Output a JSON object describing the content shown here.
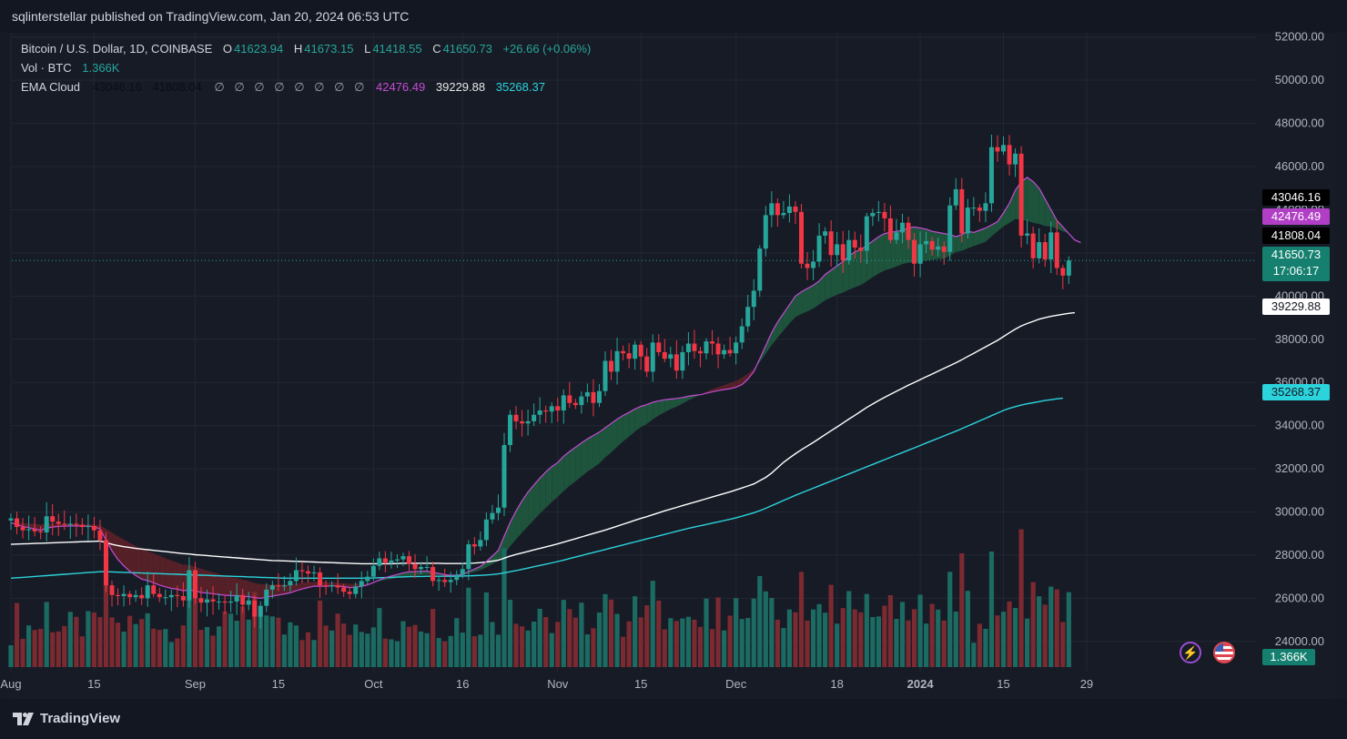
{
  "header": {
    "published": "sqlinterstellar published on TradingView.com, Jan 20, 2024 06:53 UTC"
  },
  "legend": {
    "symbol": "Bitcoin / U.S. Dollar, 1D, COINBASE",
    "o_label": "O",
    "o": "41623.94",
    "h_label": "H",
    "h": "41673.15",
    "l_label": "L",
    "l": "41418.55",
    "c_label": "C",
    "c": "41650.73",
    "change": "+26.66 (+0.06%)",
    "vol_label": "Vol · BTC",
    "vol": "1.366K",
    "ema_label": "EMA Cloud",
    "ema_v1": "43046.16",
    "ema_v2": "41808.04",
    "null_symbol": "∅",
    "ema_v3": "42476.49",
    "ema_v4": "39229.88",
    "ema_v5": "35268.37"
  },
  "price_badges": {
    "b1": "43046.16",
    "b2": "42476.49",
    "b3": "41808.04",
    "last": "41650.73",
    "countdown": "17:06:17",
    "b4": "39229.88",
    "b5": "35268.37",
    "vol": "1.366K"
  },
  "footer": {
    "brand": "TradingView"
  },
  "colors": {
    "up": "#26a69a",
    "down": "#f23645",
    "ema_fast": "#c64cd5",
    "ema_200": "#ffffff",
    "ema_300": "#2bd4dc",
    "cloud_bull": "#1f5a3f",
    "cloud_bear": "#5c2128",
    "background": "#171b26"
  },
  "icons": {
    "flash": "flash-icon",
    "flag": "us-flag-icon"
  },
  "chart_data": {
    "type": "candlestick",
    "title": "Bitcoin / U.S. Dollar, 1D, COINBASE",
    "y_ticks": [
      24000,
      26000,
      28000,
      30000,
      32000,
      34000,
      36000,
      38000,
      40000,
      42000,
      44000,
      46000,
      48000,
      50000,
      52000
    ],
    "y_tick_labels": [
      "24000.00",
      "26000.00",
      "28000.00",
      "30000.00",
      "32000.00",
      "34000.00",
      "36000.00",
      "38000.00",
      "40000.00",
      "42000.00",
      "44000.00",
      "46000.00",
      "48000.00",
      "50000.00",
      "52000.00"
    ],
    "ylim": [
      22600,
      52200
    ],
    "x_tick_labels": [
      {
        "label": "Aug",
        "date": "2023-08-01"
      },
      {
        "label": "15",
        "date": "2023-08-15"
      },
      {
        "label": "Sep",
        "date": "2023-09-01"
      },
      {
        "label": "15",
        "date": "2023-09-15"
      },
      {
        "label": "Oct",
        "date": "2023-10-01"
      },
      {
        "label": "16",
        "date": "2023-10-16"
      },
      {
        "label": "Nov",
        "date": "2023-11-01"
      },
      {
        "label": "15",
        "date": "2023-11-15"
      },
      {
        "label": "Dec",
        "date": "2023-12-01"
      },
      {
        "label": "18",
        "date": "2023-12-18"
      },
      {
        "label": "2024",
        "date": "2024-01-01"
      },
      {
        "label": "15",
        "date": "2024-01-15"
      },
      {
        "label": "29",
        "date": "2024-01-29"
      }
    ],
    "x_start": "2023-08-01",
    "closes": [
      29700,
      29300,
      29150,
      29200,
      29100,
      29050,
      29800,
      29550,
      29450,
      29400,
      29450,
      29400,
      29300,
      29350,
      29150,
      28700,
      26600,
      26150,
      26100,
      26200,
      26050,
      26150,
      26000,
      26600,
      26200,
      26050,
      26050,
      26150,
      26100,
      25900,
      27300,
      26000,
      25800,
      25950,
      25850,
      25850,
      25800,
      25850,
      26150,
      25700,
      25900,
      25150,
      25650,
      26400,
      26600,
      26550,
      26600,
      26800,
      27300,
      27250,
      27150,
      27200,
      26600,
      26550,
      26600,
      26500,
      26300,
      26200,
      26550,
      26800,
      27000,
      27500,
      27850,
      27650,
      27750,
      27800,
      27950,
      27600,
      27350,
      27450,
      27450,
      26800,
      26850,
      26750,
      26850,
      27100,
      27350,
      28500,
      28400,
      28700,
      29650,
      29950,
      30200,
      33100,
      34500,
      34200,
      34100,
      34200,
      34500,
      34700,
      34650,
      34900,
      34700,
      35400,
      35050,
      34950,
      35350,
      35550,
      35050,
      35600,
      37000,
      36500,
      37450,
      37350,
      37100,
      37750,
      37200,
      36500,
      37850,
      37400,
      37100,
      37300,
      36550,
      37400,
      37800,
      37450,
      37350,
      37900,
      37800,
      37300,
      37500,
      37350,
      37850,
      38600,
      39500,
      40250,
      42200,
      43750,
      44300,
      43750,
      43850,
      44150,
      43900,
      41500,
      41300,
      41600,
      42800,
      43000,
      41900,
      42400,
      41650,
      42600,
      42250,
      42100,
      43700,
      43850,
      43900,
      43600,
      42600,
      42950,
      43400,
      42600,
      41500,
      42400,
      42550,
      42150,
      42300,
      42050,
      44200,
      44950,
      42900,
      44100,
      44100,
      43950,
      44300,
      46900,
      46700,
      47000,
      46100,
      46600,
      42800,
      42900,
      41750,
      42500,
      41700,
      42950,
      41300,
      40950,
      41650
    ],
    "volume_max_btc": 30,
    "ema_fast": [
      29500,
      29420,
      29330,
      29270,
      29210,
      29150,
      29250,
      29300,
      29330,
      29340,
      29350,
      29350,
      29340,
      29340,
      29310,
      29210,
      28700,
      28200,
      27800,
      27500,
      27250,
      27060,
      26890,
      26820,
      26720,
      26610,
      26530,
      26460,
      26420,
      26350,
      26390,
      26340,
      26270,
      26240,
      26210,
      26170,
      26140,
      26120,
      26120,
      26080,
      26080,
      26030,
      26000,
      26050,
      26100,
      26150,
      26200,
      26250,
      26350,
      26430,
      26500,
      26560,
      26560,
      26560,
      26570,
      26570,
      26540,
      26500,
      26510,
      26550,
      26620,
      26730,
      26850,
      26950,
      27030,
      27100,
      27180,
      27220,
      27240,
      27250,
      27260,
      27200,
      27150,
      27090,
      27060,
      27070,
      27100,
      27240,
      27350,
      27480,
      27700,
      27950,
      28220,
      28880,
      29510,
      30050,
      30520,
      30920,
      31250,
      31570,
      31850,
      32100,
      32290,
      32580,
      32800,
      33000,
      33200,
      33380,
      33540,
      33700,
      33900,
      34100,
      34300,
      34470,
      34610,
      34770,
      34890,
      34970,
      35080,
      35150,
      35200,
      35230,
      35260,
      35300,
      35360,
      35400,
      35430,
      35500,
      35560,
      35620,
      35670,
      35710,
      35780,
      35900,
      36150,
      36500,
      37100,
      37700,
      38300,
      38800,
      39200,
      39600,
      40000,
      40200,
      40350,
      40500,
      40700,
      41000,
      41200,
      41400,
      41600,
      41850,
      42050,
      42150,
      42350,
      42550,
      42750,
      42900,
      42950,
      43000,
      43050,
      43150,
      43200,
      43150,
      43100,
      43000,
      42950,
      42900,
      42850,
      42750,
      42850,
      43000,
      42950,
      43050,
      43150,
      43300,
      43450,
      43850,
      44300,
      44900,
      45300,
      45500,
      45300,
      45000,
      44500,
      44000,
      43500,
      43200,
      42900,
      42600,
      42476
    ],
    "ema_200": [
      28500,
      28510,
      28520,
      28530,
      28540,
      28550,
      28560,
      28570,
      28580,
      28590,
      28600,
      28610,
      28620,
      28630,
      28640,
      28650,
      28580,
      28500,
      28440,
      28390,
      28350,
      28310,
      28280,
      28250,
      28220,
      28190,
      28160,
      28130,
      28100,
      28070,
      28050,
      28020,
      28000,
      27980,
      27950,
      27930,
      27910,
      27890,
      27870,
      27850,
      27830,
      27810,
      27790,
      27770,
      27750,
      27740,
      27730,
      27720,
      27710,
      27700,
      27690,
      27680,
      27670,
      27660,
      27650,
      27640,
      27630,
      27620,
      27610,
      27600,
      27600,
      27600,
      27600,
      27600,
      27600,
      27610,
      27620,
      27620,
      27620,
      27620,
      27620,
      27620,
      27620,
      27610,
      27610,
      27610,
      27610,
      27620,
      27630,
      27650,
      27680,
      27720,
      27760,
      27860,
      27950,
      28030,
      28100,
      28170,
      28240,
      28310,
      28380,
      28450,
      28520,
      28600,
      28680,
      28760,
      28840,
      28920,
      29000,
      29080,
      29160,
      29250,
      29340,
      29430,
      29520,
      29610,
      29700,
      29780,
      29870,
      29960,
      30050,
      30130,
      30210,
      30290,
      30370,
      30450,
      30530,
      30610,
      30690,
      30770,
      30850,
      30930,
      31020,
      31110,
      31200,
      31300,
      31450,
      31600,
      31800,
      32050,
      32300,
      32500,
      32700,
      32880,
      33050,
      33220,
      33400,
      33580,
      33760,
      33940,
      34120,
      34300,
      34480,
      34660,
      34840,
      35000,
      35160,
      35310,
      35450,
      35590,
      35730,
      35870,
      36000,
      36130,
      36260,
      36390,
      36520,
      36650,
      36780,
      36910,
      37050,
      37200,
      37350,
      37500,
      37650,
      37800,
      37950,
      38120,
      38300,
      38470,
      38620,
      38730,
      38830,
      38930,
      39000,
      39060,
      39110,
      39160,
      39200,
      39229
    ],
    "ema_300": [
      26930,
      26950,
      26970,
      26990,
      27010,
      27030,
      27050,
      27070,
      27090,
      27110,
      27130,
      27150,
      27170,
      27190,
      27210,
      27230,
      27230,
      27220,
      27210,
      27200,
      27190,
      27180,
      27170,
      27160,
      27150,
      27140,
      27130,
      27120,
      27110,
      27100,
      27090,
      27080,
      27070,
      27060,
      27050,
      27040,
      27030,
      27020,
      27010,
      27000,
      26990,
      26980,
      26970,
      26960,
      26950,
      26940,
      26930,
      26930,
      26930,
      26930,
      26930,
      26930,
      26930,
      26930,
      26930,
      26930,
      26930,
      26930,
      26930,
      26930,
      26935,
      26940,
      26950,
      26960,
      26970,
      26980,
      26990,
      27000,
      27010,
      27010,
      27020,
      27020,
      27020,
      27020,
      27020,
      27020,
      27030,
      27040,
      27050,
      27060,
      27080,
      27100,
      27130,
      27180,
      27230,
      27280,
      27340,
      27400,
      27460,
      27520,
      27580,
      27640,
      27700,
      27770,
      27840,
      27910,
      27980,
      28050,
      28120,
      28190,
      28260,
      28330,
      28400,
      28470,
      28540,
      28610,
      28680,
      28750,
      28820,
      28890,
      28960,
      29030,
      29100,
      29170,
      29240,
      29300,
      29360,
      29420,
      29480,
      29540,
      29600,
      29660,
      29730,
      29800,
      29880,
      29960,
      30060,
      30170,
      30290,
      30410,
      30530,
      30650,
      30770,
      30880,
      30990,
      31100,
      31210,
      31320,
      31430,
      31540,
      31650,
      31760,
      31870,
      31980,
      32090,
      32200,
      32310,
      32420,
      32530,
      32640,
      32750,
      32860,
      32970,
      33080,
      33190,
      33300,
      33410,
      33520,
      33630,
      33740,
      33860,
      33980,
      34100,
      34220,
      34340,
      34460,
      34580,
      34700,
      34800,
      34880,
      34950,
      35010,
      35060,
      35110,
      35160,
      35200,
      35240,
      35268
    ]
  }
}
